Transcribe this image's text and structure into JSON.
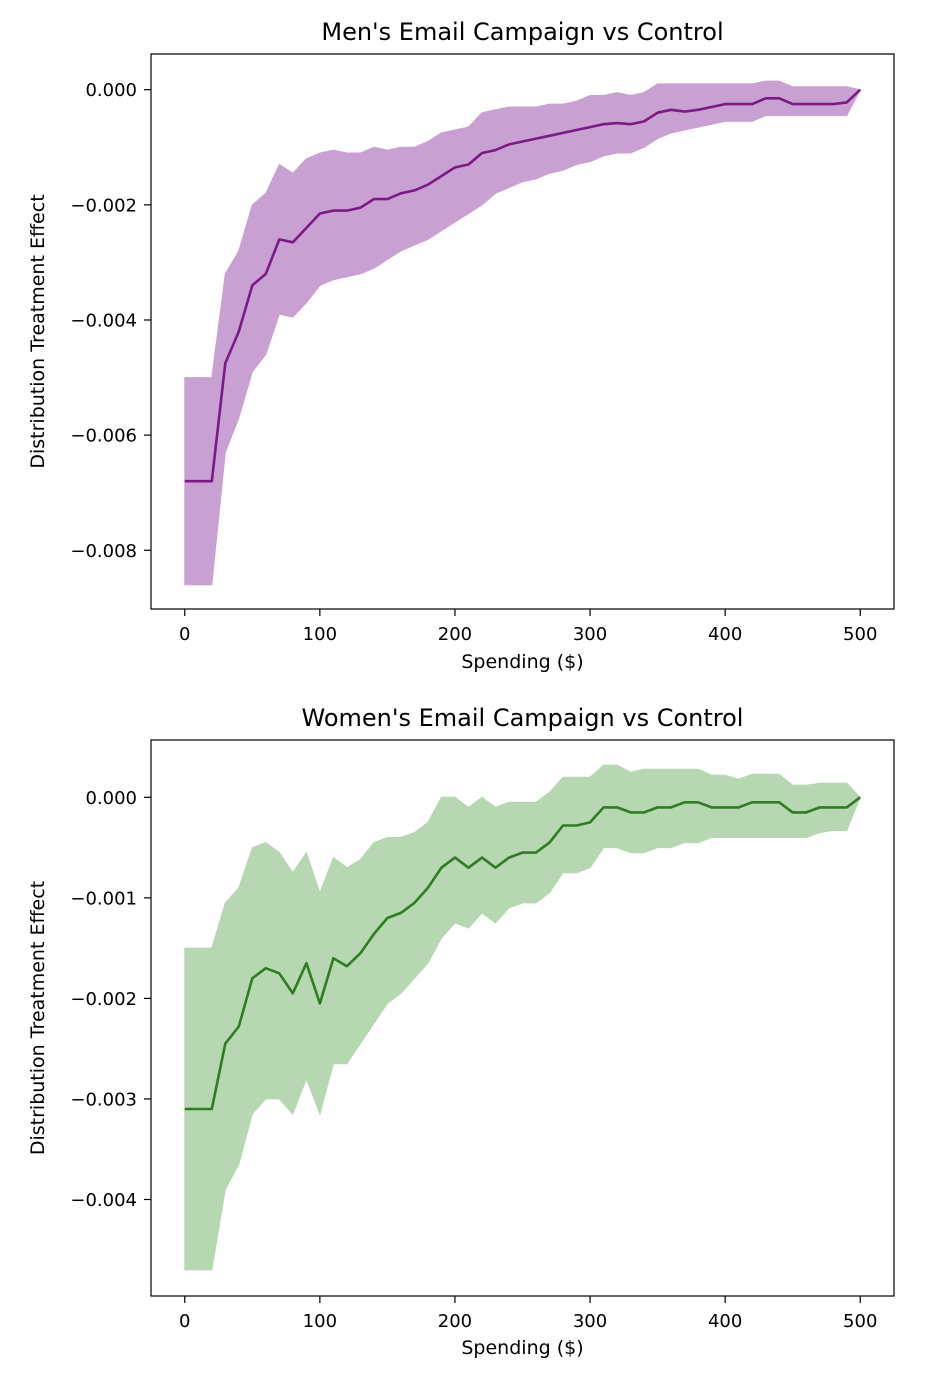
{
  "chart_data": [
    {
      "type": "line",
      "title": "Men's Email Campaign vs Control",
      "xlabel": "Spending ($)",
      "ylabel": "Distribution Treatment Effect",
      "xlim": [
        -25,
        525
      ],
      "ylim": [
        -0.00902,
        0.00062
      ],
      "xticks": [
        0,
        100,
        200,
        300,
        400,
        500
      ],
      "xtick_labels": [
        "0",
        "100",
        "200",
        "300",
        "400",
        "500"
      ],
      "yticks": [
        0.0,
        -0.002,
        -0.004,
        -0.006,
        -0.008
      ],
      "ytick_labels": [
        "0.000",
        "−0.002",
        "−0.004",
        "−0.006",
        "−0.008"
      ],
      "grid": false,
      "legend": "none",
      "line_color": "#7b1a86",
      "band_color": "#c9a0d2",
      "x": [
        0,
        10,
        20,
        30,
        40,
        50,
        60,
        70,
        80,
        90,
        100,
        110,
        120,
        130,
        140,
        150,
        160,
        170,
        180,
        190,
        200,
        210,
        220,
        230,
        240,
        250,
        260,
        270,
        280,
        290,
        300,
        310,
        320,
        330,
        340,
        350,
        360,
        370,
        380,
        390,
        400,
        410,
        420,
        430,
        440,
        450,
        460,
        470,
        480,
        490,
        500
      ],
      "series": [
        {
          "values": [
            -0.0068,
            -0.0068,
            -0.0068,
            -0.00475,
            -0.0042,
            -0.0034,
            -0.0032,
            -0.0026,
            -0.00265,
            -0.0024,
            -0.00215,
            -0.0021,
            -0.0021,
            -0.00205,
            -0.0019,
            -0.0019,
            -0.0018,
            -0.00175,
            -0.00165,
            -0.0015,
            -0.00135,
            -0.0013,
            -0.0011,
            -0.00105,
            -0.00095,
            -0.0009,
            -0.00085,
            -0.0008,
            -0.00075,
            -0.0007,
            -0.00065,
            -0.0006,
            -0.00058,
            -0.0006,
            -0.00055,
            -0.0004,
            -0.00035,
            -0.00038,
            -0.00035,
            -0.0003,
            -0.00025,
            -0.00025,
            -0.00025,
            -0.00015,
            -0.00015,
            -0.00025,
            -0.00025,
            -0.00025,
            -0.00025,
            -0.00022,
            0.0
          ],
          "lower": [
            -0.0086,
            -0.0086,
            -0.0086,
            -0.0063,
            -0.0057,
            -0.0049,
            -0.0046,
            -0.0039,
            -0.00395,
            -0.0037,
            -0.0034,
            -0.0033,
            -0.00325,
            -0.0032,
            -0.0031,
            -0.00295,
            -0.0028,
            -0.0027,
            -0.0026,
            -0.00245,
            -0.0023,
            -0.00215,
            -0.002,
            -0.0018,
            -0.0017,
            -0.0016,
            -0.00155,
            -0.00145,
            -0.0014,
            -0.0013,
            -0.00125,
            -0.00115,
            -0.0011,
            -0.0011,
            -0.001,
            -0.00085,
            -0.00075,
            -0.0007,
            -0.00065,
            -0.0006,
            -0.00055,
            -0.00055,
            -0.00055,
            -0.00045,
            -0.00045,
            -0.00045,
            -0.00045,
            -0.00045,
            -0.00045,
            -0.00045,
            0.0
          ],
          "upper": [
            -0.005,
            -0.005,
            -0.005,
            -0.0032,
            -0.0028,
            -0.002,
            -0.0018,
            -0.0013,
            -0.00145,
            -0.0012,
            -0.0011,
            -0.00105,
            -0.0011,
            -0.0011,
            -0.001,
            -0.00105,
            -0.001,
            -0.001,
            -0.0009,
            -0.00075,
            -0.0007,
            -0.00065,
            -0.0004,
            -0.00035,
            -0.0003,
            -0.0003,
            -0.0003,
            -0.00025,
            -0.00025,
            -0.0002,
            -0.0001,
            -0.0001,
            -5e-05,
            -0.0001,
            -5e-05,
            0.0001,
            0.0001,
            0.0001,
            0.0001,
            0.0001,
            0.0001,
            0.0001,
            0.0001,
            0.00015,
            0.00015,
            5e-05,
            5e-05,
            5e-05,
            5e-05,
            5e-05,
            0.0
          ]
        }
      ]
    },
    {
      "type": "line",
      "title": "Women's Email Campaign vs Control",
      "xlabel": "Spending ($)",
      "ylabel": "Distribution Treatment Effect",
      "xlim": [
        -25,
        525
      ],
      "ylim": [
        -0.00496,
        0.00057
      ],
      "xticks": [
        0,
        100,
        200,
        300,
        400,
        500
      ],
      "xtick_labels": [
        "0",
        "100",
        "200",
        "300",
        "400",
        "500"
      ],
      "yticks": [
        0.0,
        -0.001,
        -0.002,
        -0.003,
        -0.004
      ],
      "ytick_labels": [
        "0.000",
        "−0.001",
        "−0.002",
        "−0.003",
        "−0.004"
      ],
      "grid": false,
      "legend": "none",
      "line_color": "#2f7d22",
      "band_color": "#b6d7b1",
      "x": [
        0,
        10,
        20,
        30,
        40,
        50,
        60,
        70,
        80,
        90,
        100,
        110,
        120,
        130,
        140,
        150,
        160,
        170,
        180,
        190,
        200,
        210,
        220,
        230,
        240,
        250,
        260,
        270,
        280,
        290,
        300,
        310,
        320,
        330,
        340,
        350,
        360,
        370,
        380,
        390,
        400,
        410,
        420,
        430,
        440,
        450,
        460,
        470,
        480,
        490,
        500
      ],
      "series": [
        {
          "values": [
            -0.0031,
            -0.0031,
            -0.0031,
            -0.00245,
            -0.00228,
            -0.0018,
            -0.0017,
            -0.00175,
            -0.00195,
            -0.00165,
            -0.00205,
            -0.0016,
            -0.00168,
            -0.00155,
            -0.00136,
            -0.0012,
            -0.00115,
            -0.00105,
            -0.0009,
            -0.0007,
            -0.0006,
            -0.0007,
            -0.0006,
            -0.0007,
            -0.0006,
            -0.00055,
            -0.00055,
            -0.00045,
            -0.00028,
            -0.00028,
            -0.00025,
            -0.0001,
            -0.0001,
            -0.00015,
            -0.00015,
            -0.0001,
            -0.0001,
            -5e-05,
            -5e-05,
            -0.0001,
            -0.0001,
            -0.0001,
            -5e-05,
            -5e-05,
            -5e-05,
            -0.00015,
            -0.00015,
            -0.0001,
            -0.0001,
            -0.0001,
            0.0
          ],
          "lower": [
            -0.0047,
            -0.0047,
            -0.0047,
            -0.0039,
            -0.00365,
            -0.00315,
            -0.003,
            -0.003,
            -0.00315,
            -0.0028,
            -0.00315,
            -0.00265,
            -0.00265,
            -0.00245,
            -0.00225,
            -0.00205,
            -0.00195,
            -0.0018,
            -0.00165,
            -0.0014,
            -0.00125,
            -0.0013,
            -0.00115,
            -0.00125,
            -0.0011,
            -0.00105,
            -0.00105,
            -0.00095,
            -0.00075,
            -0.00075,
            -0.0007,
            -0.0005,
            -0.0005,
            -0.00055,
            -0.00055,
            -0.0005,
            -0.0005,
            -0.00045,
            -0.00045,
            -0.0004,
            -0.0004,
            -0.0004,
            -0.0004,
            -0.0004,
            -0.0004,
            -0.0004,
            -0.0004,
            -0.00035,
            -0.00033,
            -0.00033,
            0.0
          ],
          "upper": [
            -0.0015,
            -0.0015,
            -0.0015,
            -0.00105,
            -0.0009,
            -0.0005,
            -0.00045,
            -0.00055,
            -0.00075,
            -0.00055,
            -0.00095,
            -0.0006,
            -0.0007,
            -0.00062,
            -0.00045,
            -0.0004,
            -0.0004,
            -0.00035,
            -0.00025,
            0.0,
            0.0,
            -0.0001,
            0.0,
            -0.0001,
            -5e-05,
            -5e-05,
            -5e-05,
            5e-05,
            0.0002,
            0.0002,
            0.0002,
            0.00032,
            0.00032,
            0.00025,
            0.00028,
            0.00028,
            0.00028,
            0.00028,
            0.00028,
            0.00022,
            0.00022,
            0.00018,
            0.00023,
            0.00023,
            0.00023,
            0.00012,
            0.00012,
            0.00014,
            0.00014,
            0.00014,
            0.0
          ]
        }
      ]
    }
  ]
}
